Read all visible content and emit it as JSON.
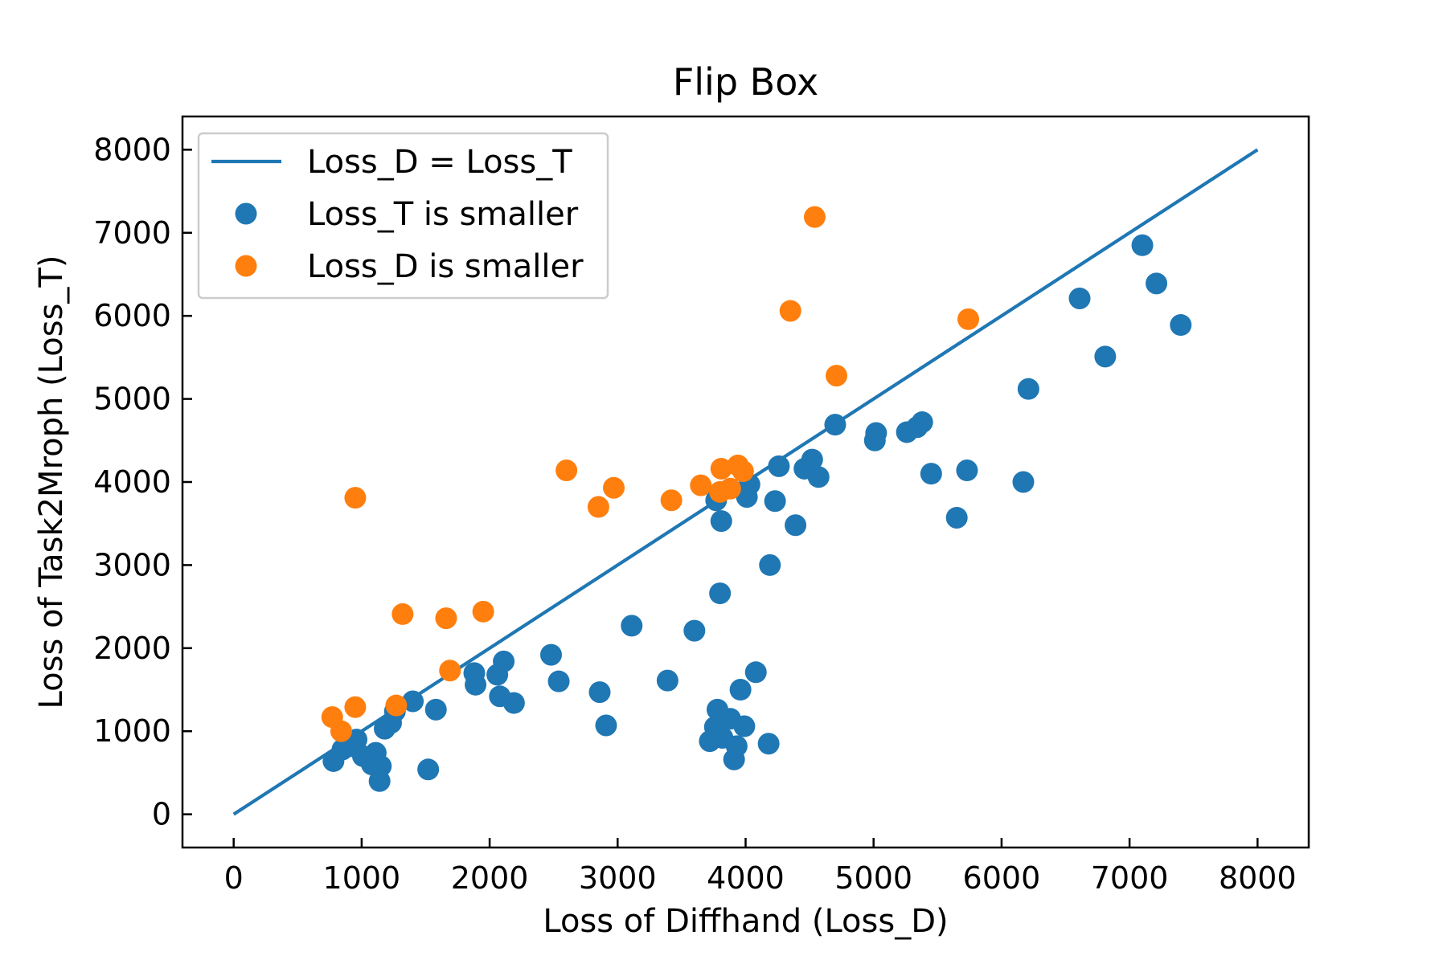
{
  "chart_data": {
    "type": "scatter",
    "title": "Flip Box",
    "xlabel": "Loss of Diffhand (Loss_D)",
    "ylabel": "Loss of Task2Mroph (Loss_T)",
    "xlim": [
      -400,
      8400
    ],
    "ylim": [
      -400,
      8400
    ],
    "xticks": [
      0,
      1000,
      2000,
      3000,
      4000,
      5000,
      6000,
      7000,
      8000
    ],
    "yticks": [
      0,
      1000,
      2000,
      3000,
      4000,
      5000,
      6000,
      7000,
      8000
    ],
    "grid": false,
    "legend_position": "upper-left",
    "reference_line": {
      "name": "Loss_D = Loss_T",
      "x": [
        0,
        8000
      ],
      "y": [
        0,
        8000
      ],
      "color": "#1f77b4"
    },
    "series": [
      {
        "name": "Loss_T is smaller",
        "color": "#1f77b4",
        "points": [
          [
            780,
            640
          ],
          [
            850,
            780
          ],
          [
            920,
            820
          ],
          [
            960,
            900
          ],
          [
            1010,
            700
          ],
          [
            1080,
            600
          ],
          [
            1110,
            740
          ],
          [
            1150,
            580
          ],
          [
            1140,
            400
          ],
          [
            1180,
            1030
          ],
          [
            1230,
            1100
          ],
          [
            1260,
            1240
          ],
          [
            1400,
            1360
          ],
          [
            1520,
            540
          ],
          [
            1580,
            1260
          ],
          [
            1880,
            1700
          ],
          [
            1890,
            1560
          ],
          [
            2060,
            1680
          ],
          [
            2080,
            1420
          ],
          [
            2110,
            1840
          ],
          [
            2190,
            1340
          ],
          [
            2480,
            1920
          ],
          [
            2540,
            1600
          ],
          [
            2860,
            1470
          ],
          [
            2910,
            1070
          ],
          [
            3110,
            2270
          ],
          [
            3390,
            1610
          ],
          [
            3600,
            2210
          ],
          [
            3720,
            880
          ],
          [
            3760,
            1050
          ],
          [
            3780,
            1260
          ],
          [
            3800,
            2660
          ],
          [
            3810,
            3530
          ],
          [
            3770,
            3780
          ],
          [
            3820,
            920
          ],
          [
            3880,
            1150
          ],
          [
            3910,
            660
          ],
          [
            3930,
            820
          ],
          [
            3960,
            1500
          ],
          [
            3990,
            1060
          ],
          [
            4010,
            3820
          ],
          [
            4030,
            3970
          ],
          [
            4080,
            1710
          ],
          [
            4180,
            850
          ],
          [
            4190,
            3000
          ],
          [
            4230,
            3770
          ],
          [
            4260,
            4190
          ],
          [
            4390,
            3480
          ],
          [
            4460,
            4160
          ],
          [
            4520,
            4270
          ],
          [
            4570,
            4060
          ],
          [
            4700,
            4690
          ],
          [
            5010,
            4500
          ],
          [
            5020,
            4590
          ],
          [
            5260,
            4600
          ],
          [
            5340,
            4660
          ],
          [
            5380,
            4720
          ],
          [
            5450,
            4100
          ],
          [
            5650,
            3570
          ],
          [
            5730,
            4140
          ],
          [
            6170,
            4000
          ],
          [
            6210,
            5120
          ],
          [
            6610,
            6210
          ],
          [
            6810,
            5510
          ],
          [
            7100,
            6850
          ],
          [
            7210,
            6390
          ],
          [
            7400,
            5890
          ]
        ]
      },
      {
        "name": "Loss_D is smaller",
        "color": "#ff7f0e",
        "points": [
          [
            770,
            1170
          ],
          [
            840,
            1000
          ],
          [
            950,
            3810
          ],
          [
            950,
            1290
          ],
          [
            1270,
            1310
          ],
          [
            1320,
            2410
          ],
          [
            1660,
            2360
          ],
          [
            1690,
            1730
          ],
          [
            1950,
            2440
          ],
          [
            2600,
            4140
          ],
          [
            2850,
            3700
          ],
          [
            2970,
            3930
          ],
          [
            3420,
            3780
          ],
          [
            3650,
            3960
          ],
          [
            3800,
            3880
          ],
          [
            3810,
            4160
          ],
          [
            3880,
            3920
          ],
          [
            3940,
            4200
          ],
          [
            3980,
            4130
          ],
          [
            4350,
            6060
          ],
          [
            4540,
            7190
          ],
          [
            4710,
            5280
          ],
          [
            5740,
            5960
          ]
        ]
      }
    ]
  }
}
